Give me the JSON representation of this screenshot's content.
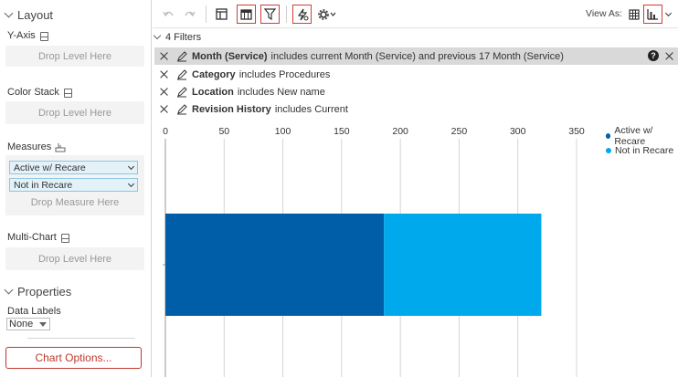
{
  "left_panel": {
    "layout_title": "Layout",
    "y_axis_label": "Y-Axis",
    "y_axis_drop": "Drop Level Here",
    "color_stack_label": "Color Stack",
    "color_stack_drop": "Drop Level Here",
    "measures_label": "Measures",
    "measures": [
      "Active w/ Recare",
      "Not in Recare"
    ],
    "measure_drop": "Drop Measure Here",
    "multichart_label": "Multi-Chart",
    "multichart_drop": "Drop Level Here",
    "properties_title": "Properties",
    "data_labels_label": "Data Labels",
    "data_labels_value": "None",
    "chart_options": "Chart Options..."
  },
  "toolbar": {
    "view_as_label": "View As:"
  },
  "filters": {
    "header": "4 Filters",
    "items": [
      {
        "name": "Month (Service)",
        "text": "includes current Month (Service) and previous 17 Month (Service)"
      },
      {
        "name": "Category",
        "text": "includes Procedures"
      },
      {
        "name": "Location",
        "text": "includes New name"
      },
      {
        "name": "Revision History",
        "text": "includes Current"
      }
    ]
  },
  "colors": {
    "accent_red": "#d23c3c",
    "series_dark": "#005ea8",
    "series_light": "#00a8ec"
  },
  "chart_data": {
    "type": "bar",
    "orientation": "horizontal",
    "stacked": true,
    "categories": [
      ""
    ],
    "series": [
      {
        "name": "Active w/ Recare",
        "values": [
          186
        ],
        "color": "#005ea8"
      },
      {
        "name": "Not in Recare",
        "values": [
          134
        ],
        "color": "#00a8ec"
      }
    ],
    "xlim": [
      0,
      350
    ],
    "x_ticks": [
      0,
      50,
      100,
      150,
      200,
      250,
      300,
      350
    ],
    "xaxis_position": "top",
    "grid": true,
    "legend_position": "right"
  }
}
